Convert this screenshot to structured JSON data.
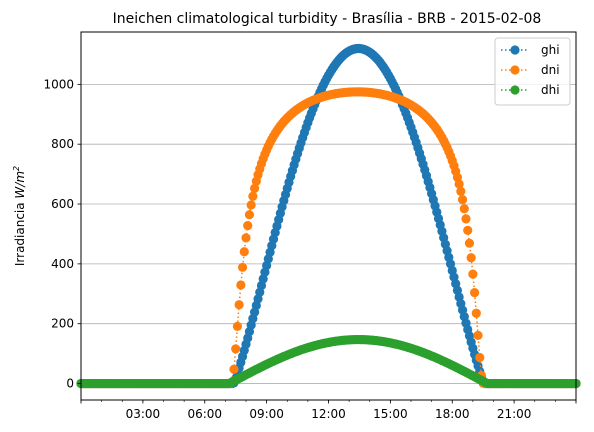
{
  "chart_data": {
    "type": "line",
    "title": "Ineichen climatological turbidity - Brasília - BRB - 2015-02-08",
    "xlabel": "",
    "ylabel_text": "Irradiancia ",
    "ylabel_unit": "W/m",
    "ylabel_unit_sup": "2",
    "xlim_hours": [
      0,
      24
    ],
    "ylim": [
      -55,
      1175
    ],
    "yticks": [
      0,
      200,
      400,
      600,
      800,
      1000
    ],
    "ytick_labels": [
      "0",
      "200",
      "400",
      "600",
      "800",
      "1000"
    ],
    "xticks_hours": [
      3,
      6,
      9,
      12,
      15,
      18,
      21
    ],
    "xtick_labels": [
      "03:00",
      "06:00",
      "09:00",
      "12:00",
      "15:00",
      "18:00",
      "21:00"
    ],
    "grid": "y-major",
    "legend_position": "top-right",
    "marker": "circle",
    "linestyle": "dotted",
    "sample_interval_minutes": 5,
    "series": [
      {
        "name": "ghi",
        "color": "#1f77b4",
        "shape": "sine-power",
        "sunrise_hour": 7.4,
        "sunset_hour": 19.55,
        "peak_hour": 13.45,
        "peak_value": 1120,
        "exponent": 1.15
      },
      {
        "name": "dni",
        "color": "#ff7f0e",
        "shape": "transmittance",
        "sunrise_hour": 7.2,
        "sunset_hour": 19.6,
        "peak_hour": 13.4,
        "peak_value": 975,
        "optical_depth": 0.175
      },
      {
        "name": "dhi",
        "color": "#2ca02c",
        "shape": "sine-power",
        "sunrise_hour": 7.2,
        "sunset_hour": 19.7,
        "peak_hour": 13.45,
        "peak_value": 147,
        "exponent": 1.0
      }
    ]
  }
}
